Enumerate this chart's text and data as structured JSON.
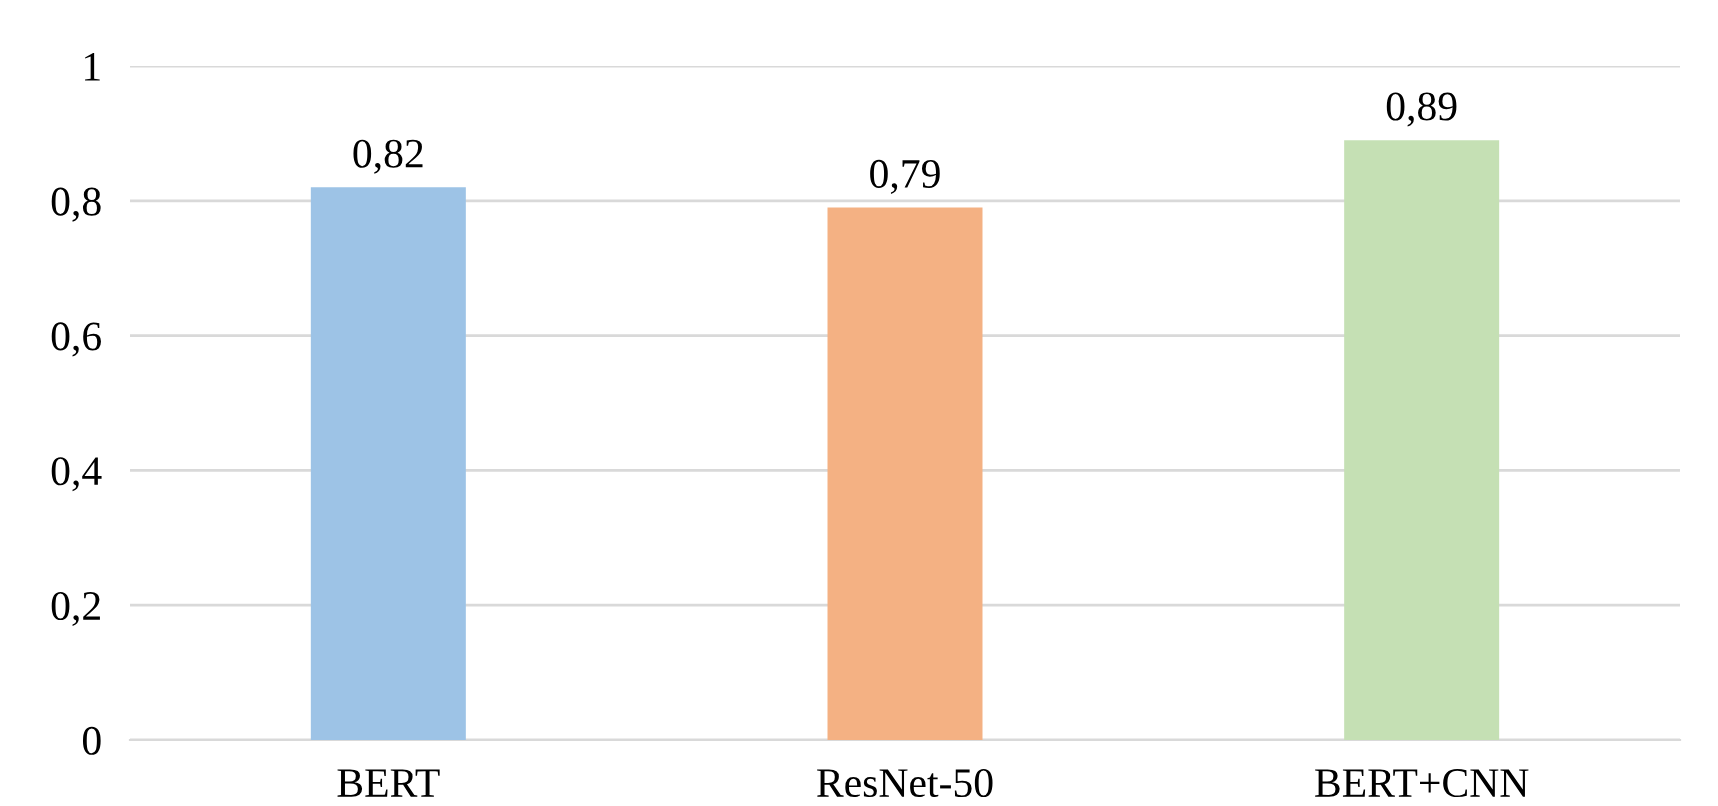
{
  "chart_data": {
    "type": "bar",
    "categories": [
      "BERT",
      "ResNet-50",
      "BERT+CNN"
    ],
    "values": [
      0.82,
      0.79,
      0.89
    ],
    "colors": [
      "#9dc3e6",
      "#f4b183",
      "#c5e0b4"
    ],
    "value_labels": [
      "0,82",
      "0,79",
      "0,89"
    ],
    "ylim": [
      0,
      1
    ],
    "yticks": [
      0,
      {
        "value": 0.2,
        "label": "0,2"
      },
      {
        "value": 0.4,
        "label": "0,4"
      },
      {
        "value": 0.6,
        "label": "0,6"
      },
      {
        "value": 0.8,
        "label": "0,8"
      },
      1
    ],
    "grid": "y",
    "legend": false
  }
}
